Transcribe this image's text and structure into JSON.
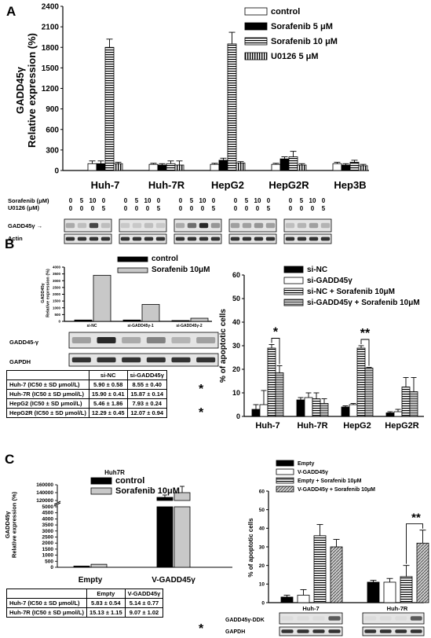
{
  "panels": {
    "A": "A",
    "B": "B",
    "C": "C"
  },
  "panelA": {
    "chart_data": {
      "type": "bar",
      "ylabel": "GADD45γ\nRelative expression (%)",
      "ylim": [
        0,
        2400
      ],
      "yticks": [
        0,
        300,
        600,
        900,
        1200,
        1500,
        1800,
        2100,
        2400
      ],
      "categories": [
        "Huh-7",
        "Huh-7R",
        "HepG2",
        "HepG2R",
        "Hep3B"
      ],
      "series": [
        {
          "name": "control",
          "values": [
            100,
            90,
            90,
            90,
            100
          ],
          "errors": [
            40,
            15,
            15,
            15,
            20
          ]
        },
        {
          "name": "Sorafenib 5 μM",
          "values": [
            100,
            80,
            150,
            170,
            80
          ],
          "errors": [
            40,
            20,
            30,
            30,
            20
          ]
        },
        {
          "name": "Sorafenib 10 μM",
          "values": [
            1800,
            100,
            1850,
            200,
            120
          ],
          "errors": [
            120,
            40,
            170,
            80,
            30
          ]
        },
        {
          "name": "U0126 5 μM",
          "values": [
            100,
            80,
            110,
            80,
            70
          ],
          "errors": [
            20,
            60,
            20,
            20,
            20
          ]
        }
      ]
    },
    "blot": {
      "sorafenib_label": "Sorafenib (μM)",
      "u0126_label": "U0126   (μM)",
      "sorafenib_vals": [
        "0",
        "5",
        "10",
        "0"
      ],
      "u0126_vals": [
        "0",
        "0",
        "0",
        "5"
      ],
      "rows": [
        "GADD45γ",
        "Actin"
      ]
    }
  },
  "panelB": {
    "inset": {
      "chart_data": {
        "type": "bar",
        "ylabel": "GADD45γ\nRelative expression (%)",
        "ylim": [
          0,
          4000
        ],
        "yticks": [
          0,
          500,
          1000,
          1500,
          2000,
          2500,
          3000,
          3500,
          4000
        ],
        "categories": [
          "si-NC",
          "si-GADD45γ-1",
          "si-GADD45γ-2"
        ],
        "series": [
          {
            "name": "control",
            "values": [
              100,
              100,
              60
            ]
          },
          {
            "name": "Sorafenib 10μM",
            "values": [
              3400,
              1250,
              230
            ]
          }
        ]
      },
      "blot_rows": [
        "GADD45-γ",
        "GAPDH"
      ]
    },
    "table": {
      "headers": [
        "",
        "si-NC",
        "si-GADD45γ"
      ],
      "rows": [
        [
          "Huh-7 (IC50 ± SD μmol/L)",
          "5.90 ± 0.58",
          "8.55 ± 0.40"
        ],
        [
          "Huh-7R (IC50 ± SD μmol/L)",
          "15.90 ± 0.41",
          "15.87 ± 0.14"
        ],
        [
          "HepG2 (IC50 ± SD μmol/L)",
          "5.46 ± 1.86",
          "7.93 ± 0.24"
        ],
        [
          "HepG2R (IC50 ± SD μmol/L)",
          "12.29 ± 0.45",
          "12.07 ± 0.94"
        ]
      ],
      "stars": [
        "*",
        "*"
      ]
    },
    "apoptosis": {
      "chart_data": {
        "type": "bar",
        "ylabel": "% of apoptotic cells",
        "ylim": [
          0,
          60
        ],
        "yticks": [
          0,
          10,
          20,
          30,
          40,
          50,
          60
        ],
        "categories": [
          "Huh-7",
          "Huh-7R",
          "HepG2",
          "HepG2R"
        ],
        "series": [
          {
            "name": "si-NC",
            "values": [
              3,
              7,
              4,
              1.5
            ],
            "errors": [
              2,
              1,
              0.5,
              0.5
            ]
          },
          {
            "name": "si-GADD45γ",
            "values": [
              5,
              8,
              5,
              2
            ],
            "errors": [
              6,
              2,
              0.5,
              1
            ]
          },
          {
            "name": "si-NC + Sorafenib 10μM",
            "values": [
              29,
              7.5,
              29,
              12.5
            ],
            "errors": [
              1.5,
              2.5,
              1,
              4
            ]
          },
          {
            "name": "si-GADD45γ + Sorafenib 10μM",
            "values": [
              18.5,
              5.5,
              20.5,
              10.5
            ],
            "errors": [
              3,
              2,
              0.3,
              6
            ]
          }
        ],
        "annotations": [
          "*",
          "**"
        ]
      }
    }
  },
  "panelC": {
    "expr": {
      "chart_data": {
        "type": "bar",
        "title": "Huh7R",
        "ylabel": "GADD45γ\nRelative expression (%)",
        "yticks_lower": [
          0,
          500,
          1000,
          1500,
          2000,
          2500,
          3000,
          3500,
          4000,
          4500,
          5000
        ],
        "yticks_upper": [
          120000,
          140000,
          160000
        ],
        "categories": [
          "Empty",
          "V-GADD45γ"
        ],
        "series": [
          {
            "name": "control",
            "values": [
              100,
              128000
            ]
          },
          {
            "name": "Sorafenib 10μM",
            "values": [
              250,
              140000
            ]
          }
        ]
      }
    },
    "table": {
      "headers": [
        "",
        "Empty",
        "V-GADD45γ"
      ],
      "rows": [
        [
          "Huh-7    (IC50 ± SD μmol/L)",
          "5.83 ± 0.54",
          "5.14 ± 0.77"
        ],
        [
          "Huh-7R (IC50 ± SD μmol/L)",
          "15.13 ± 1.15",
          "9.07 ± 1.02"
        ]
      ],
      "star": "*"
    },
    "apoptosis": {
      "chart_data": {
        "type": "bar",
        "ylabel": "% of apoptotic cells",
        "ylim": [
          0,
          60
        ],
        "yticks": [
          0,
          10,
          20,
          30,
          40,
          50,
          60
        ],
        "categories": [
          "Huh-7",
          "Huh-7R"
        ],
        "series": [
          {
            "name": "Empty",
            "values": [
              3,
              11
            ],
            "errors": [
              1,
              1
            ]
          },
          {
            "name": "V-GADD45γ",
            "values": [
              4,
              11
            ],
            "errors": [
              3,
              2
            ]
          },
          {
            "name": "Empty + Sorafenib 10μM",
            "values": [
              36,
              14
            ],
            "errors": [
              6,
              6
            ]
          },
          {
            "name": "V-GADD45γ + Sorafenib 10μM",
            "values": [
              30,
              32
            ],
            "errors": [
              4,
              7
            ]
          }
        ],
        "annotations": [
          "**"
        ]
      },
      "blot_rows": [
        "GADD45γ-DDK",
        "GAPDH"
      ]
    }
  }
}
